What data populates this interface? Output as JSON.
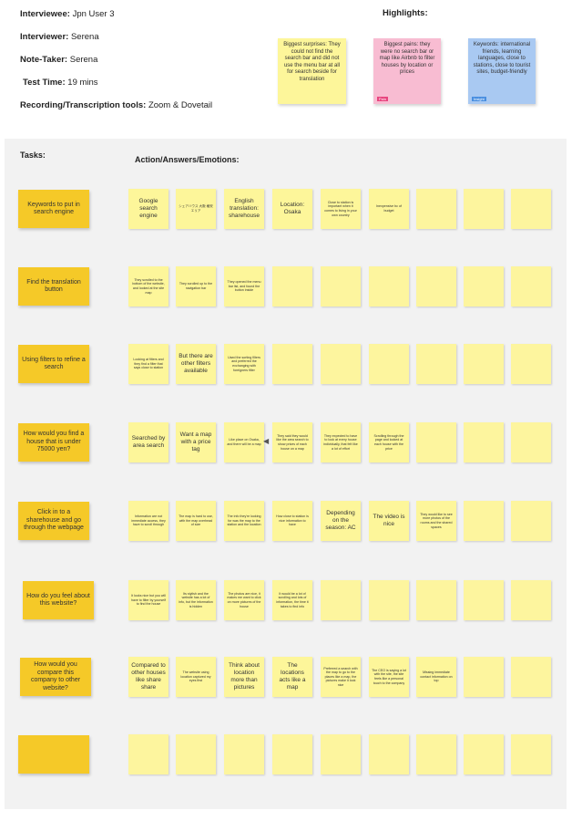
{
  "header": {
    "interviewee": {
      "label": "Interviewee:",
      "value": "Jpn User 3"
    },
    "interviewer": {
      "label": "Interviewer:",
      "value": "Serena"
    },
    "note_taker": {
      "label": "Note-Taker:",
      "value": "Serena"
    },
    "test_time": {
      "label": "Test Time:",
      "value": "19 mins"
    },
    "tools": {
      "label": "Recording/Transcription tools:",
      "value": "Zoom & Dovetail"
    }
  },
  "highlights": {
    "title": "Highlights:",
    "notes": [
      {
        "text": "Biggest surprises: They could not find the search bar and did not use the menu bar at all for search beside for translation",
        "color": "#fdf69a",
        "tag": ""
      },
      {
        "text": "Biggest pains: they were no search bar or map like Airbnb to filter houses by location or prices",
        "color": "#f8bcd2",
        "tag": "Pain",
        "tag_color": "#e8457f"
      },
      {
        "text": "Keywords: international friends, learning languages, close to stations, close to tourist sites, budget-friendly",
        "color": "#a9c9f2",
        "tag": "Insight",
        "tag_color": "#4a8fe0"
      }
    ]
  },
  "tasks_label": "Tasks:",
  "actions_label": "Action/Answers/Emotions:",
  "rows": [
    {
      "task": "Keywords to put in search engine",
      "notes": [
        {
          "text": "Google search engine",
          "size": "l"
        },
        {
          "text": "シェアハウス 大阪 格安 エリア",
          "size": "s"
        },
        {
          "text": "English translation: sharehouse",
          "size": "l"
        },
        {
          "text": "Location: Osaka",
          "size": "l"
        },
        {
          "text": "Close to station is important when it comes to living in your own country",
          "size": "s"
        },
        {
          "text": "Inexpensive bc of budget",
          "size": "s"
        }
      ]
    },
    {
      "task": "Find the translation button",
      "notes": [
        {
          "text": "They scrolled to the bottom of the website, and looked at the site map",
          "size": "s"
        },
        {
          "text": "They scrolled up to the navigation bar",
          "size": "s"
        },
        {
          "text": "They opened the menu bar list, and found the button inside",
          "size": "s"
        }
      ]
    },
    {
      "task": "Using filters to refine a search",
      "notes": [
        {
          "text": "Looking at filters and they find a filter that says close to station",
          "size": "s"
        },
        {
          "text": "But there are other filters available",
          "size": "l"
        },
        {
          "text": "Used the sorting filters and preferred the exchanging with foreigners filter",
          "size": "s"
        }
      ]
    },
    {
      "task": "How would you find a house that is under 75000 yen?",
      "arrow": "◀",
      "notes": [
        {
          "text": "Searched by area search",
          "size": "l"
        },
        {
          "text": "Want a map with a price tag",
          "size": "l"
        },
        {
          "text": "Like place on Osaka, and there will be a map",
          "size": "s"
        },
        {
          "text": "They said they would like the area search to show prices of each house on a map",
          "size": "s"
        },
        {
          "text": "They expected to have to look at every house individually, that felt like a lot of effort",
          "size": "s"
        },
        {
          "text": "Scrolling through the page and looked at each house with the price",
          "size": "s"
        }
      ]
    },
    {
      "task": "Click in to a sharehouse and go through the webpage",
      "notes": [
        {
          "text": "Information are not immediate access, they have to scroll through",
          "size": "s"
        },
        {
          "text": "The map is hard to use, with the map overhead of size",
          "size": "s"
        },
        {
          "text": "The info they're looking for was the map to the station and the location",
          "size": "s"
        },
        {
          "text": "How close to station is nice information to have",
          "size": "s"
        },
        {
          "text": "Depending on the season: AC",
          "size": "l"
        },
        {
          "text": "The video is nice",
          "size": "l"
        },
        {
          "text": "They would like to see more photos of the rooms and the shared spaces",
          "size": "s"
        }
      ]
    },
    {
      "task": "How do you feel about this website?",
      "notes": [
        {
          "text": "It looks nice but you will have to filter by yourself to find the house",
          "size": "s"
        },
        {
          "text": "Its stylish and the website has a lot of info, but the information is hidden",
          "size": "s"
        },
        {
          "text": "The photos are nice, it makes me want to click on more pictures of the house",
          "size": "s"
        },
        {
          "text": "It would be a lot of scrolling and lots of information, the time it takes to find info",
          "size": "s"
        }
      ]
    },
    {
      "task": "How would you compare this company to other website?",
      "notes": [
        {
          "text": "Compared to other houses like share share",
          "size": "l"
        },
        {
          "text": "The website using location captured my eyes first",
          "size": "s"
        },
        {
          "text": "Think about location more than pictures",
          "size": "l"
        },
        {
          "text": "The locations acts like a map",
          "size": "l"
        },
        {
          "text": "Preferred a search with the map to go to the places like a map, the pictures make it look nice",
          "size": "s"
        },
        {
          "text": "The CEO is saying a lot with the site, the site feels like a personal touch to the company",
          "size": "s"
        },
        {
          "text": "Missing immediate contact information on top",
          "size": "s"
        }
      ]
    },
    {
      "task": "",
      "notes": []
    }
  ]
}
